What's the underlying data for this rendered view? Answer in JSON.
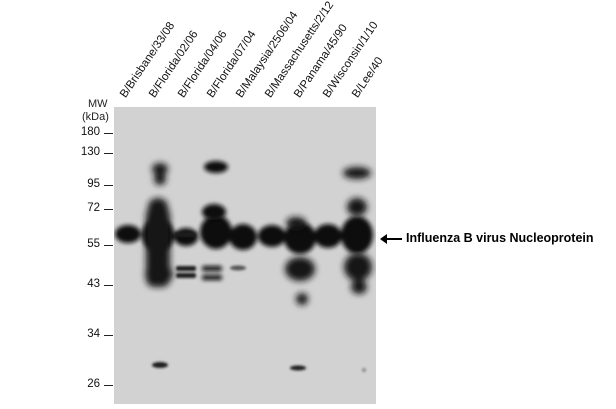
{
  "lanes": [
    "B/Brisbane/33/08",
    "B/Florida/02/06",
    "B/Florida/04/06",
    "B/Florida/07/04",
    "B/Malaysia/2506/04",
    "B/Massachusetts/2/12",
    "B/Panama/45/90",
    "B/Wisconsin/1/10",
    "B/Lee/40"
  ],
  "mw": {
    "title_line1": "MW",
    "title_line2": "(kDa)",
    "markers": [
      "180",
      "130",
      "95",
      "72",
      "55",
      "43",
      "34",
      "26"
    ]
  },
  "annotation": "Influenza B virus Nucleoprotein"
}
